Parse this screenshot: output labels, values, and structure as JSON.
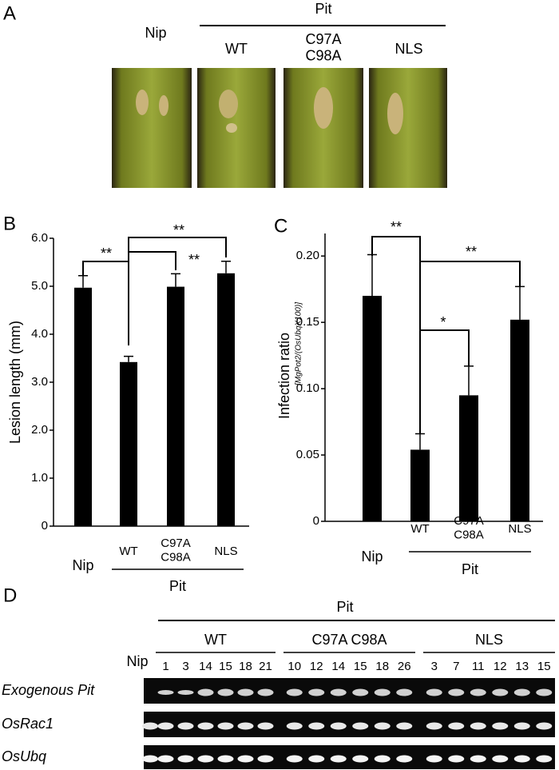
{
  "panel_a": {
    "label": "A",
    "nip": "Nip",
    "group": "Pit",
    "lanes": [
      "WT",
      "C97A\nC98A",
      "NLS"
    ]
  },
  "chart_data": [
    {
      "type": "bar",
      "panel_label": "B",
      "y_label": "Lesion length (mm)",
      "categories": [
        "Nip",
        "WT",
        "C97A\nC98A",
        "NLS"
      ],
      "group_label": "Pit",
      "values": [
        4.97,
        3.42,
        4.99,
        5.27
      ],
      "errors": [
        0.25,
        0.12,
        0.27,
        0.25
      ],
      "color": "#000000",
      "ylim": [
        0,
        6
      ],
      "yticks": [
        0,
        {
          "value": 1,
          "label": "1.0"
        },
        {
          "value": 2,
          "label": "2.0"
        },
        {
          "value": 3,
          "label": "3.0"
        },
        {
          "value": 4,
          "label": "4.0"
        },
        {
          "value": 5,
          "label": "5.0"
        },
        {
          "value": 6,
          "label": "6.0"
        }
      ],
      "annotations": [
        "**",
        "**",
        "**"
      ]
    },
    {
      "type": "bar",
      "panel_label": "C",
      "y_label": "Infection ratio",
      "y_label_note": "[MgPot2/(OsUbqX100)]",
      "categories": [
        "Nip",
        "WT",
        "C97A\nC98A",
        "NLS"
      ],
      "group_label": "Pit",
      "values": [
        0.17,
        0.054,
        0.095,
        0.152
      ],
      "errors": [
        0.031,
        0.012,
        0.022,
        0.025
      ],
      "color": "#000000",
      "ylim": [
        0,
        0.217
      ],
      "yticks": [
        0,
        0.05,
        {
          "value": 0.1,
          "label": "0.10"
        },
        0.15,
        {
          "value": 0.2,
          "label": "0.20"
        }
      ],
      "annotations": [
        "**",
        "**",
        "*"
      ]
    }
  ],
  "panel_d": {
    "label": "D",
    "group": "Pit",
    "nip": "Nip",
    "subgroups": [
      {
        "name": "WT",
        "lanes": [
          1,
          3,
          14,
          15,
          18,
          21
        ]
      },
      {
        "name": "C97A C98A",
        "lanes": [
          10,
          12,
          14,
          15,
          18,
          26
        ]
      },
      {
        "name": "NLS",
        "lanes": [
          3,
          7,
          11,
          12,
          13,
          15
        ]
      }
    ],
    "rows": [
      "Exogenous Pit",
      "OsRac1",
      "OsUbq"
    ]
  }
}
